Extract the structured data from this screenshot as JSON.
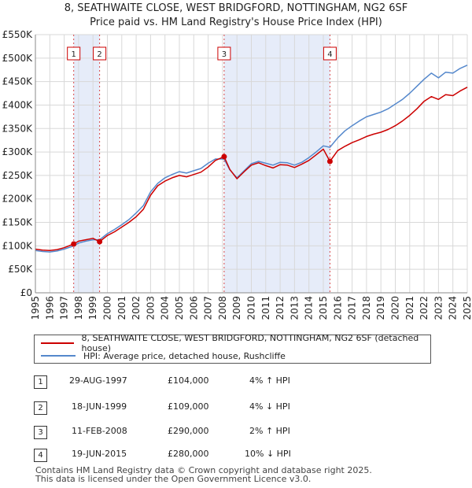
{
  "title_line1": "8, SEATHWAITE CLOSE, WEST BRIDGFORD, NOTTINGHAM, NG2 6SF",
  "title_line2": "Price paid vs. HM Land Registry's House Price Index (HPI)",
  "colors": {
    "price_line": "#cc0000",
    "hpi_line": "#5588cc",
    "shade": "#e6ecf9",
    "marker_box": "#cc0000",
    "grid": "#d8d8d8"
  },
  "chart_data": {
    "type": "line",
    "xlim": [
      1995,
      2025
    ],
    "ylim": [
      0,
      550000
    ],
    "x_ticks": [
      1995,
      1996,
      1997,
      1998,
      1999,
      2000,
      2001,
      2002,
      2003,
      2004,
      2005,
      2006,
      2007,
      2008,
      2009,
      2010,
      2011,
      2012,
      2013,
      2014,
      2015,
      2016,
      2017,
      2018,
      2019,
      2020,
      2021,
      2022,
      2023,
      2024,
      2025
    ],
    "y_ticks": [
      0,
      50000,
      100000,
      150000,
      200000,
      250000,
      300000,
      350000,
      400000,
      450000,
      500000,
      550000
    ],
    "y_tick_labels": [
      "£0",
      "£50K",
      "£100K",
      "£150K",
      "£200K",
      "£250K",
      "£300K",
      "£350K",
      "£400K",
      "£450K",
      "£500K",
      "£550K"
    ],
    "shaded_ranges": [
      [
        1997.66,
        1999.46
      ],
      [
        2008.11,
        2015.46
      ]
    ],
    "series": [
      {
        "name": "8, SEATHWAITE CLOSE, WEST BRIDGFORD, NOTTINGHAM, NG2 6SF (detached house)",
        "color": "#cc0000",
        "x": [
          1995.0,
          1995.5,
          1996.0,
          1996.5,
          1997.0,
          1997.66,
          1998.0,
          1998.5,
          1999.0,
          1999.46,
          2000.0,
          2000.5,
          2001.0,
          2001.5,
          2002.0,
          2002.5,
          2003.0,
          2003.5,
          2004.0,
          2004.5,
          2005.0,
          2005.5,
          2006.0,
          2006.5,
          2007.0,
          2007.5,
          2008.11,
          2008.5,
          2009.0,
          2009.5,
          2010.0,
          2010.5,
          2011.0,
          2011.5,
          2012.0,
          2012.5,
          2013.0,
          2013.5,
          2014.0,
          2014.5,
          2015.0,
          2015.46,
          2016.0,
          2016.5,
          2017.0,
          2017.5,
          2018.0,
          2018.5,
          2019.0,
          2019.5,
          2020.0,
          2020.5,
          2021.0,
          2021.5,
          2022.0,
          2022.5,
          2023.0,
          2023.5,
          2024.0,
          2024.5,
          2025.0
        ],
        "y": [
          93000,
          91000,
          90000,
          92000,
          96000,
          104000,
          110000,
          113000,
          116000,
          109000,
          122000,
          130000,
          140000,
          150000,
          162000,
          178000,
          208000,
          228000,
          238000,
          245000,
          250000,
          247000,
          252000,
          257000,
          268000,
          282000,
          290000,
          263000,
          243000,
          258000,
          272000,
          277000,
          271000,
          266000,
          273000,
          272000,
          267000,
          274000,
          282000,
          294000,
          306000,
          280000,
          303000,
          312000,
          320000,
          326000,
          333000,
          338000,
          342000,
          348000,
          356000,
          366000,
          378000,
          392000,
          408000,
          418000,
          412000,
          422000,
          420000,
          430000,
          438000
        ]
      },
      {
        "name": "HPI: Average price, detached house, Rushcliffe",
        "color": "#5588cc",
        "x": [
          1995.0,
          1995.5,
          1996.0,
          1996.5,
          1997.0,
          1997.66,
          1998.0,
          1998.5,
          1999.0,
          1999.46,
          2000.0,
          2000.5,
          2001.0,
          2001.5,
          2002.0,
          2002.5,
          2003.0,
          2003.5,
          2004.0,
          2004.5,
          2005.0,
          2005.5,
          2006.0,
          2006.5,
          2007.0,
          2007.5,
          2008.11,
          2008.5,
          2009.0,
          2009.5,
          2010.0,
          2010.5,
          2011.0,
          2011.5,
          2012.0,
          2012.5,
          2013.0,
          2013.5,
          2014.0,
          2014.5,
          2015.0,
          2015.46,
          2016.0,
          2016.5,
          2017.0,
          2017.5,
          2018.0,
          2018.5,
          2019.0,
          2019.5,
          2020.0,
          2020.5,
          2021.0,
          2021.5,
          2022.0,
          2022.5,
          2023.0,
          2023.5,
          2024.0,
          2024.5,
          2025.0
        ],
        "y": [
          90000,
          88000,
          87000,
          89000,
          93000,
          100000,
          106000,
          110000,
          113000,
          113000,
          126000,
          135000,
          145000,
          156000,
          170000,
          186000,
          215000,
          233000,
          245000,
          252000,
          258000,
          255000,
          260000,
          265000,
          276000,
          285000,
          285000,
          262000,
          245000,
          260000,
          275000,
          280000,
          276000,
          272000,
          278000,
          277000,
          272000,
          278000,
          288000,
          300000,
          313000,
          310000,
          330000,
          345000,
          356000,
          366000,
          375000,
          380000,
          385000,
          392000,
          402000,
          412000,
          425000,
          440000,
          455000,
          468000,
          458000,
          470000,
          468000,
          478000,
          485000
        ]
      }
    ],
    "sales": [
      {
        "label": "1",
        "x": 1997.66,
        "y": 104000
      },
      {
        "label": "2",
        "x": 1999.46,
        "y": 109000
      },
      {
        "label": "3",
        "x": 2008.11,
        "y": 290000
      },
      {
        "label": "4",
        "x": 2015.46,
        "y": 280000
      }
    ]
  },
  "legend": {
    "price_label": "8, SEATHWAITE CLOSE, WEST BRIDGFORD, NOTTINGHAM, NG2 6SF (detached house)",
    "hpi_label": "HPI: Average price, detached house, Rushcliffe"
  },
  "transactions": [
    {
      "num": "1",
      "date": "29-AUG-1997",
      "price": "£104,000",
      "hpi": "4% ↑ HPI"
    },
    {
      "num": "2",
      "date": "18-JUN-1999",
      "price": "£109,000",
      "hpi": "4% ↓ HPI"
    },
    {
      "num": "3",
      "date": "11-FEB-2008",
      "price": "£290,000",
      "hpi": "2% ↑ HPI"
    },
    {
      "num": "4",
      "date": "19-JUN-2015",
      "price": "£280,000",
      "hpi": "10% ↓ HPI"
    }
  ],
  "footer_line1": "Contains HM Land Registry data © Crown copyright and database right 2025.",
  "footer_line2": "This data is licensed under the Open Government Licence v3.0."
}
